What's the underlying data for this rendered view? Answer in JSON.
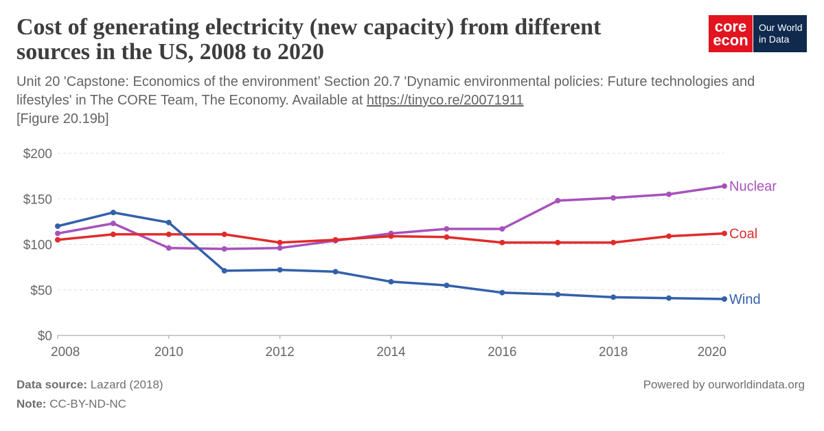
{
  "header": {
    "title": "Cost of generating electricity (new capacity) from different sources in the US, 2008 to 2020",
    "subtitle_text": "Unit 20 'Capstone: Economics of the environment’ Section 20.7 'Dynamic environmental policies: Future technologies and lifestyles' in The CORE Team, The Economy. Available at ",
    "subtitle_link": "https://tinyco.re/20071911",
    "subtitle_figure": "[Figure 20.19b]"
  },
  "logos": {
    "core_line1": "core",
    "core_line2": "econ",
    "owid_line1": "Our World",
    "owid_line2": "in Data"
  },
  "footer": {
    "source_label": "Data source:",
    "source_value": "Lazard (2018)",
    "note_label": "Note:",
    "note_value": "CC-BY-ND-NC",
    "powered": "Powered by ourworldindata.org"
  },
  "chart_data": {
    "type": "line",
    "x": [
      2008,
      2009,
      2010,
      2011,
      2012,
      2013,
      2014,
      2015,
      2016,
      2017,
      2018,
      2019,
      2020
    ],
    "xlim": [
      2008,
      2020
    ],
    "ylim": [
      0,
      200
    ],
    "xticks": [
      "2008",
      "2010",
      "2012",
      "2014",
      "2016",
      "2018",
      "2020"
    ],
    "yticks": [
      "$0",
      "$50",
      "$100",
      "$150",
      "$200"
    ],
    "grid": "horizontal dashed",
    "legend": "line-end labels",
    "series": [
      {
        "name": "Nuclear",
        "color": "#a652ba",
        "values": [
          112,
          123,
          96,
          95,
          96,
          104,
          112,
          117,
          117,
          148,
          151,
          155,
          164
        ]
      },
      {
        "name": "Coal",
        "color": "#e02b2b",
        "values": [
          105,
          111,
          111,
          111,
          102,
          105,
          109,
          108,
          102,
          102,
          102,
          109,
          112
        ]
      },
      {
        "name": "Wind",
        "color": "#3360a9",
        "values": [
          120,
          135,
          124,
          71,
          72,
          70,
          59,
          55,
          47,
          45,
          42,
          41,
          40
        ]
      }
    ]
  }
}
